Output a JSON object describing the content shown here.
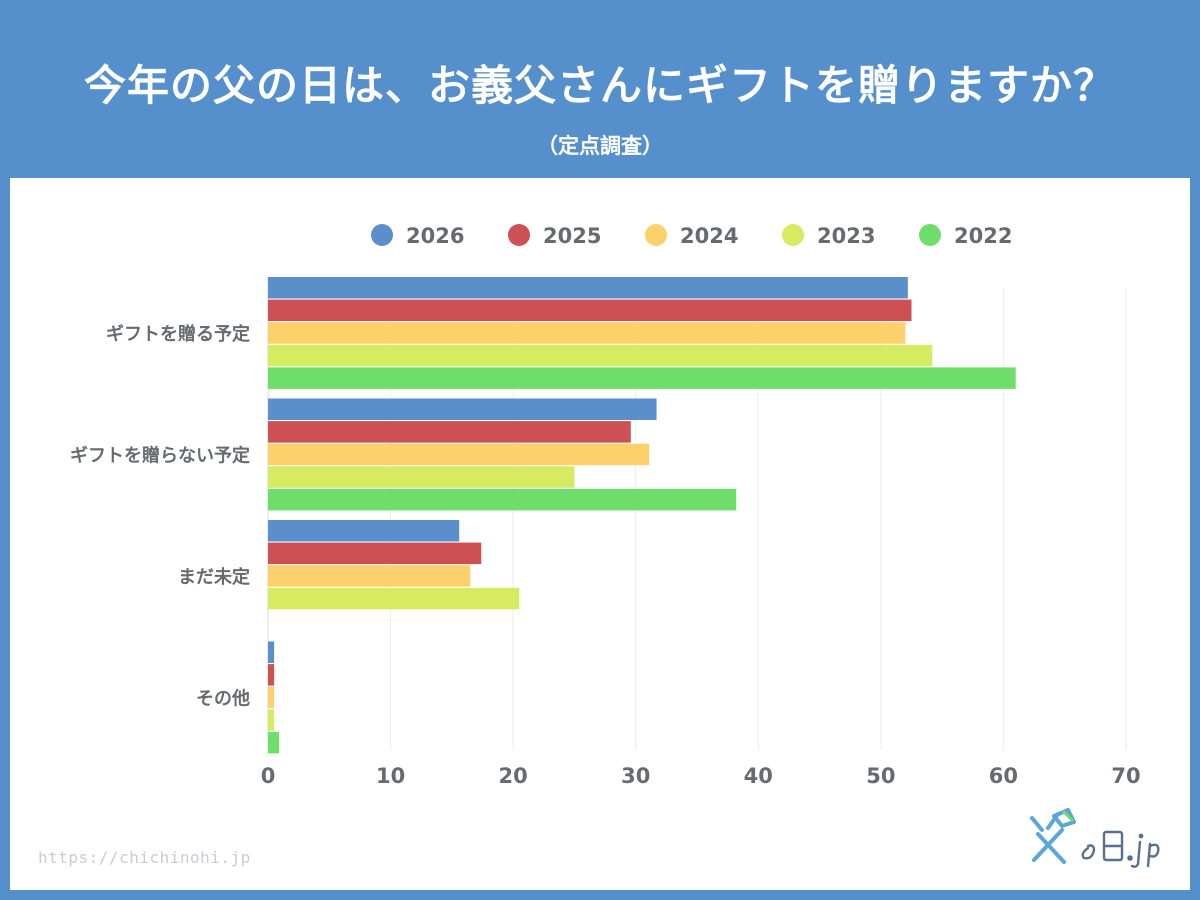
{
  "header": {
    "title": "今年の父の日は、お義父さんにギフトを贈りますか？",
    "subtitle": "（定点調査）"
  },
  "footer": {
    "url": "https://chichinohi.jp",
    "logo_text": "父の日.jp"
  },
  "colors": {
    "background": "#5590cc",
    "panel": "#ffffff",
    "text": "#666b70"
  },
  "chart_data": {
    "type": "bar",
    "orientation": "horizontal",
    "categories": [
      "ギフトを贈る予定",
      "ギフトを贈らない予定",
      "まだ未定",
      "その他"
    ],
    "series": [
      {
        "name": "2026",
        "color": "#5b8fcc",
        "values": [
          52.2,
          31.7,
          15.6,
          0.5
        ]
      },
      {
        "name": "2025",
        "color": "#cc5054",
        "values": [
          52.5,
          29.6,
          17.4,
          0.5
        ]
      },
      {
        "name": "2024",
        "color": "#fcd06a",
        "values": [
          52.0,
          31.1,
          16.5,
          0.5
        ]
      },
      {
        "name": "2023",
        "color": "#d6ea62",
        "values": [
          54.2,
          25.0,
          20.5,
          0.5
        ]
      },
      {
        "name": "2022",
        "color": "#6fdd69",
        "values": [
          61.0,
          38.2,
          null,
          0.9
        ]
      }
    ],
    "xlim": [
      0,
      70
    ],
    "xticks": [
      0,
      10,
      20,
      30,
      40,
      50,
      60,
      70
    ],
    "grid": true,
    "legend": "top"
  }
}
